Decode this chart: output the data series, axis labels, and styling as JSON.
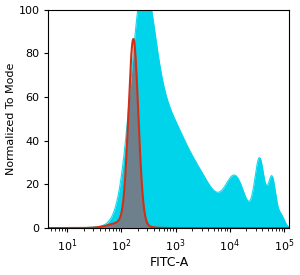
{
  "title": "",
  "xlabel": "FITC-A",
  "ylabel": "Normalized To Mode",
  "ylim": [
    0,
    100
  ],
  "yticks": [
    0,
    20,
    40,
    60,
    80,
    100
  ],
  "background_color": "#ffffff",
  "cyan_color": "#00d4ea",
  "red_color": "#d03018",
  "gray_color": "#7a7a8a",
  "cyan_alpha": 1.0,
  "gray_alpha": 0.85
}
